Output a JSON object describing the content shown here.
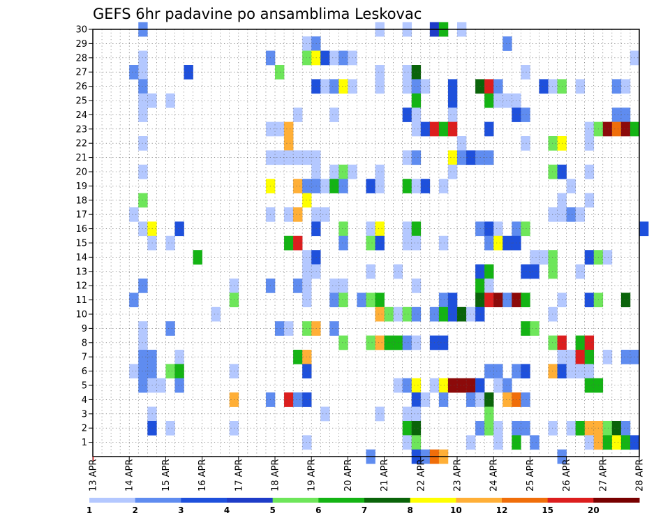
{
  "chart_data": {
    "type": "heatmap",
    "title": "GEFS 6hr padavine po ansamblima Leskovac",
    "xlabel": "",
    "ylabel": "",
    "x_tick_labels": [
      "13 APR",
      "14 APR",
      "15 APR",
      "16 APR",
      "17 APR",
      "18 APR",
      "19 APR",
      "20 APR",
      "21 APR",
      "22 APR",
      "23 APR",
      "24 APR",
      "25 APR",
      "26 APR",
      "27 APR",
      "28 APR"
    ],
    "y_tick_labels": [
      "1",
      "2",
      "3",
      "4",
      "5",
      "6",
      "7",
      "8",
      "9",
      "10",
      "11",
      "12",
      "13",
      "14",
      "15",
      "16",
      "17",
      "18",
      "19",
      "20",
      "21",
      "22",
      "23",
      "24",
      "25",
      "26",
      "27",
      "28",
      "29",
      "30"
    ],
    "ylim": [
      0,
      30
    ],
    "time_steps_per_day": 4,
    "grid": "dotted",
    "legend": {
      "placement": "bottom",
      "labels": [
        "1",
        "2",
        "3",
        "4",
        "5",
        "6",
        "7",
        "8",
        "10",
        "12",
        "15",
        "20"
      ],
      "colors": [
        "#b4c8ff",
        "#5f8cf0",
        "#1e50dc",
        "#1e3cc8",
        "#6ee65a",
        "#14b414",
        "#0a640a",
        "#ffff00",
        "#ffaf37",
        "#f06e0a",
        "#dc1e1e",
        "#780000"
      ]
    },
    "palette": [
      "#b4c8ff",
      "#5f8cf0",
      "#1e50dc",
      "#1e3cc8",
      "#6ee65a",
      "#14b414",
      "#0a640a",
      "#ffff00",
      "#ffaf37",
      "#f06e0a",
      "#dc1e1e",
      "#8c0a0a"
    ],
    "cells": [
      [
        30,
        5,
        1
      ],
      [
        30,
        31,
        0
      ],
      [
        30,
        34,
        0
      ],
      [
        30,
        37,
        3
      ],
      [
        30,
        38,
        5
      ],
      [
        30,
        40,
        0
      ],
      [
        29,
        23,
        0
      ],
      [
        29,
        24,
        1
      ],
      [
        29,
        45,
        1
      ],
      [
        28,
        5,
        0
      ],
      [
        28,
        19,
        1
      ],
      [
        28,
        23,
        4
      ],
      [
        28,
        24,
        7
      ],
      [
        28,
        25,
        2
      ],
      [
        28,
        26,
        0
      ],
      [
        28,
        27,
        1
      ],
      [
        28,
        28,
        0
      ],
      [
        28,
        59,
        0
      ],
      [
        27,
        4,
        1
      ],
      [
        27,
        5,
        0
      ],
      [
        27,
        10,
        2
      ],
      [
        27,
        20,
        4
      ],
      [
        27,
        31,
        0
      ],
      [
        27,
        34,
        0
      ],
      [
        27,
        35,
        6
      ],
      [
        27,
        47,
        0
      ],
      [
        26,
        5,
        1
      ],
      [
        26,
        24,
        2
      ],
      [
        26,
        25,
        0
      ],
      [
        26,
        26,
        1
      ],
      [
        26,
        27,
        7
      ],
      [
        26,
        28,
        0
      ],
      [
        26,
        31,
        0
      ],
      [
        26,
        34,
        0
      ],
      [
        26,
        35,
        1
      ],
      [
        26,
        36,
        0
      ],
      [
        26,
        39,
        2
      ],
      [
        26,
        42,
        6
      ],
      [
        26,
        43,
        10
      ],
      [
        26,
        44,
        1
      ],
      [
        26,
        49,
        2
      ],
      [
        26,
        50,
        0
      ],
      [
        26,
        51,
        4
      ],
      [
        26,
        53,
        0
      ],
      [
        26,
        57,
        1
      ],
      [
        26,
        58,
        0
      ],
      [
        25,
        5,
        0
      ],
      [
        25,
        6,
        0
      ],
      [
        25,
        8,
        0
      ],
      [
        25,
        35,
        5
      ],
      [
        25,
        39,
        2
      ],
      [
        25,
        43,
        5
      ],
      [
        25,
        44,
        0
      ],
      [
        25,
        45,
        0
      ],
      [
        25,
        46,
        0
      ],
      [
        24,
        5,
        0
      ],
      [
        24,
        22,
        0
      ],
      [
        24,
        26,
        0
      ],
      [
        24,
        34,
        2
      ],
      [
        24,
        35,
        0
      ],
      [
        24,
        39,
        0
      ],
      [
        24,
        46,
        2
      ],
      [
        24,
        47,
        1
      ],
      [
        24,
        57,
        1
      ],
      [
        24,
        58,
        1
      ],
      [
        23,
        19,
        0
      ],
      [
        23,
        20,
        0
      ],
      [
        23,
        21,
        8
      ],
      [
        23,
        35,
        0
      ],
      [
        23,
        36,
        2
      ],
      [
        23,
        37,
        10
      ],
      [
        23,
        38,
        5
      ],
      [
        23,
        39,
        10
      ],
      [
        23,
        43,
        2
      ],
      [
        23,
        54,
        0
      ],
      [
        23,
        55,
        4
      ],
      [
        23,
        56,
        11
      ],
      [
        23,
        57,
        9
      ],
      [
        23,
        58,
        11
      ],
      [
        23,
        59,
        5
      ],
      [
        22,
        5,
        0
      ],
      [
        22,
        21,
        8
      ],
      [
        22,
        40,
        0
      ],
      [
        22,
        47,
        0
      ],
      [
        22,
        50,
        4
      ],
      [
        22,
        51,
        7
      ],
      [
        22,
        54,
        0
      ],
      [
        21,
        19,
        0
      ],
      [
        21,
        20,
        0
      ],
      [
        21,
        21,
        0
      ],
      [
        21,
        22,
        0
      ],
      [
        21,
        23,
        0
      ],
      [
        21,
        24,
        0
      ],
      [
        21,
        34,
        0
      ],
      [
        21,
        35,
        1
      ],
      [
        21,
        39,
        7
      ],
      [
        21,
        40,
        1
      ],
      [
        21,
        41,
        2
      ],
      [
        21,
        42,
        1
      ],
      [
        21,
        43,
        1
      ],
      [
        20,
        5,
        0
      ],
      [
        20,
        24,
        0
      ],
      [
        20,
        26,
        0
      ],
      [
        20,
        27,
        4
      ],
      [
        20,
        28,
        0
      ],
      [
        20,
        31,
        0
      ],
      [
        20,
        39,
        0
      ],
      [
        20,
        50,
        4
      ],
      [
        20,
        51,
        2
      ],
      [
        20,
        54,
        0
      ],
      [
        19,
        19,
        7
      ],
      [
        19,
        22,
        8
      ],
      [
        19,
        23,
        1
      ],
      [
        19,
        24,
        1
      ],
      [
        19,
        25,
        0
      ],
      [
        19,
        26,
        5
      ],
      [
        19,
        27,
        1
      ],
      [
        19,
        30,
        2
      ],
      [
        19,
        31,
        0
      ],
      [
        19,
        34,
        5
      ],
      [
        19,
        35,
        0
      ],
      [
        19,
        36,
        2
      ],
      [
        19,
        38,
        0
      ],
      [
        19,
        52,
        0
      ],
      [
        18,
        5,
        4
      ],
      [
        18,
        23,
        7
      ],
      [
        18,
        51,
        0
      ],
      [
        18,
        54,
        0
      ],
      [
        17,
        4,
        0
      ],
      [
        17,
        19,
        0
      ],
      [
        17,
        21,
        0
      ],
      [
        17,
        22,
        8
      ],
      [
        17,
        24,
        0
      ],
      [
        17,
        25,
        0
      ],
      [
        17,
        50,
        0
      ],
      [
        17,
        51,
        0
      ],
      [
        17,
        52,
        1
      ],
      [
        17,
        53,
        0
      ],
      [
        16,
        5,
        0
      ],
      [
        16,
        6,
        7
      ],
      [
        16,
        9,
        2
      ],
      [
        16,
        24,
        2
      ],
      [
        16,
        27,
        4
      ],
      [
        16,
        30,
        0
      ],
      [
        16,
        31,
        7
      ],
      [
        16,
        34,
        0
      ],
      [
        16,
        35,
        5
      ],
      [
        16,
        42,
        1
      ],
      [
        16,
        43,
        2
      ],
      [
        16,
        44,
        0
      ],
      [
        16,
        46,
        1
      ],
      [
        16,
        47,
        4
      ],
      [
        16,
        60,
        2
      ],
      [
        15,
        6,
        0
      ],
      [
        15,
        8,
        0
      ],
      [
        15,
        21,
        5
      ],
      [
        15,
        22,
        10
      ],
      [
        15,
        27,
        1
      ],
      [
        15,
        30,
        4
      ],
      [
        15,
        31,
        2
      ],
      [
        15,
        34,
        0
      ],
      [
        15,
        35,
        0
      ],
      [
        15,
        38,
        0
      ],
      [
        15,
        43,
        1
      ],
      [
        15,
        44,
        7
      ],
      [
        15,
        45,
        2
      ],
      [
        15,
        46,
        2
      ],
      [
        14,
        11,
        5
      ],
      [
        14,
        23,
        0
      ],
      [
        14,
        24,
        2
      ],
      [
        14,
        48,
        0
      ],
      [
        14,
        49,
        0
      ],
      [
        14,
        50,
        4
      ],
      [
        14,
        54,
        2
      ],
      [
        14,
        55,
        4
      ],
      [
        14,
        56,
        0
      ],
      [
        13,
        23,
        0
      ],
      [
        13,
        24,
        0
      ],
      [
        13,
        30,
        0
      ],
      [
        13,
        33,
        0
      ],
      [
        13,
        42,
        2
      ],
      [
        13,
        43,
        5
      ],
      [
        13,
        47,
        2
      ],
      [
        13,
        48,
        2
      ],
      [
        13,
        50,
        4
      ],
      [
        13,
        53,
        0
      ],
      [
        12,
        5,
        1
      ],
      [
        12,
        15,
        0
      ],
      [
        12,
        19,
        1
      ],
      [
        12,
        22,
        1
      ],
      [
        12,
        23,
        0
      ],
      [
        12,
        26,
        0
      ],
      [
        12,
        27,
        0
      ],
      [
        12,
        35,
        0
      ],
      [
        12,
        42,
        5
      ],
      [
        12,
        43,
        0
      ],
      [
        11,
        4,
        1
      ],
      [
        11,
        15,
        4
      ],
      [
        11,
        23,
        0
      ],
      [
        11,
        26,
        1
      ],
      [
        11,
        27,
        4
      ],
      [
        11,
        29,
        1
      ],
      [
        11,
        30,
        4
      ],
      [
        11,
        31,
        5
      ],
      [
        11,
        38,
        1
      ],
      [
        11,
        39,
        2
      ],
      [
        11,
        42,
        6
      ],
      [
        11,
        43,
        10
      ],
      [
        11,
        44,
        11
      ],
      [
        11,
        45,
        1
      ],
      [
        11,
        46,
        11
      ],
      [
        11,
        47,
        5
      ],
      [
        11,
        51,
        0
      ],
      [
        11,
        54,
        2
      ],
      [
        11,
        55,
        4
      ],
      [
        11,
        58,
        6
      ],
      [
        10,
        13,
        0
      ],
      [
        10,
        31,
        8
      ],
      [
        10,
        32,
        4
      ],
      [
        10,
        33,
        0
      ],
      [
        10,
        34,
        4
      ],
      [
        10,
        35,
        1
      ],
      [
        10,
        37,
        1
      ],
      [
        10,
        38,
        5
      ],
      [
        10,
        39,
        2
      ],
      [
        10,
        40,
        6
      ],
      [
        10,
        41,
        0
      ],
      [
        10,
        42,
        2
      ],
      [
        10,
        50,
        0
      ],
      [
        9,
        5,
        0
      ],
      [
        9,
        8,
        1
      ],
      [
        9,
        20,
        1
      ],
      [
        9,
        21,
        0
      ],
      [
        9,
        23,
        4
      ],
      [
        9,
        24,
        8
      ],
      [
        9,
        26,
        1
      ],
      [
        9,
        47,
        5
      ],
      [
        9,
        48,
        4
      ],
      [
        8,
        5,
        0
      ],
      [
        8,
        27,
        4
      ],
      [
        8,
        30,
        4
      ],
      [
        8,
        31,
        8
      ],
      [
        8,
        32,
        5
      ],
      [
        8,
        33,
        5
      ],
      [
        8,
        34,
        1
      ],
      [
        8,
        35,
        0
      ],
      [
        8,
        37,
        2
      ],
      [
        8,
        38,
        2
      ],
      [
        8,
        50,
        4
      ],
      [
        8,
        51,
        10
      ],
      [
        8,
        53,
        5
      ],
      [
        8,
        54,
        10
      ],
      [
        7,
        5,
        1
      ],
      [
        7,
        6,
        1
      ],
      [
        7,
        9,
        0
      ],
      [
        7,
        22,
        5
      ],
      [
        7,
        23,
        8
      ],
      [
        7,
        51,
        0
      ],
      [
        7,
        52,
        0
      ],
      [
        7,
        53,
        10
      ],
      [
        7,
        54,
        5
      ],
      [
        7,
        56,
        0
      ],
      [
        7,
        58,
        1
      ],
      [
        7,
        59,
        1
      ],
      [
        6,
        4,
        0
      ],
      [
        6,
        5,
        1
      ],
      [
        6,
        6,
        1
      ],
      [
        6,
        8,
        4
      ],
      [
        6,
        9,
        5
      ],
      [
        6,
        15,
        0
      ],
      [
        6,
        23,
        2
      ],
      [
        6,
        43,
        1
      ],
      [
        6,
        44,
        1
      ],
      [
        6,
        46,
        1
      ],
      [
        6,
        47,
        2
      ],
      [
        6,
        50,
        8
      ],
      [
        6,
        51,
        2
      ],
      [
        6,
        52,
        0
      ],
      [
        6,
        53,
        0
      ],
      [
        6,
        54,
        0
      ],
      [
        5,
        5,
        1
      ],
      [
        5,
        6,
        0
      ],
      [
        5,
        7,
        0
      ],
      [
        5,
        9,
        1
      ],
      [
        5,
        33,
        0
      ],
      [
        5,
        34,
        1
      ],
      [
        5,
        35,
        7
      ],
      [
        5,
        37,
        0
      ],
      [
        5,
        38,
        7
      ],
      [
        5,
        39,
        11
      ],
      [
        5,
        40,
        11
      ],
      [
        5,
        41,
        11
      ],
      [
        5,
        42,
        2
      ],
      [
        5,
        44,
        0
      ],
      [
        5,
        45,
        1
      ],
      [
        5,
        54,
        5
      ],
      [
        5,
        55,
        5
      ],
      [
        4,
        15,
        8
      ],
      [
        4,
        19,
        1
      ],
      [
        4,
        21,
        10
      ],
      [
        4,
        22,
        1
      ],
      [
        4,
        23,
        2
      ],
      [
        4,
        35,
        2
      ],
      [
        4,
        36,
        0
      ],
      [
        4,
        38,
        1
      ],
      [
        4,
        41,
        1
      ],
      [
        4,
        42,
        0
      ],
      [
        4,
        43,
        6
      ],
      [
        4,
        45,
        8
      ],
      [
        4,
        46,
        9
      ],
      [
        4,
        47,
        1
      ],
      [
        3,
        6,
        0
      ],
      [
        3,
        25,
        0
      ],
      [
        3,
        31,
        0
      ],
      [
        3,
        34,
        0
      ],
      [
        3,
        35,
        0
      ],
      [
        3,
        43,
        4
      ],
      [
        2,
        6,
        2
      ],
      [
        2,
        8,
        0
      ],
      [
        2,
        15,
        0
      ],
      [
        2,
        34,
        5
      ],
      [
        2,
        35,
        6
      ],
      [
        2,
        42,
        1
      ],
      [
        2,
        43,
        4
      ],
      [
        2,
        44,
        0
      ],
      [
        2,
        46,
        1
      ],
      [
        2,
        47,
        1
      ],
      [
        2,
        50,
        0
      ],
      [
        2,
        52,
        0
      ],
      [
        2,
        53,
        5
      ],
      [
        2,
        54,
        8
      ],
      [
        2,
        55,
        8
      ],
      [
        2,
        56,
        4
      ],
      [
        2,
        57,
        6
      ],
      [
        2,
        58,
        1
      ],
      [
        1,
        23,
        0
      ],
      [
        1,
        34,
        0
      ],
      [
        1,
        35,
        4
      ],
      [
        1,
        41,
        0
      ],
      [
        1,
        44,
        0
      ],
      [
        1,
        46,
        5
      ],
      [
        1,
        48,
        1
      ],
      [
        1,
        54,
        0
      ],
      [
        1,
        55,
        8
      ],
      [
        1,
        56,
        5
      ],
      [
        1,
        57,
        7
      ],
      [
        1,
        58,
        5
      ],
      [
        1,
        59,
        2
      ],
      [
        0,
        30,
        1
      ],
      [
        0,
        35,
        2
      ],
      [
        0,
        36,
        1
      ],
      [
        0,
        37,
        9
      ],
      [
        0,
        38,
        8
      ],
      [
        0,
        51,
        1
      ]
    ]
  }
}
